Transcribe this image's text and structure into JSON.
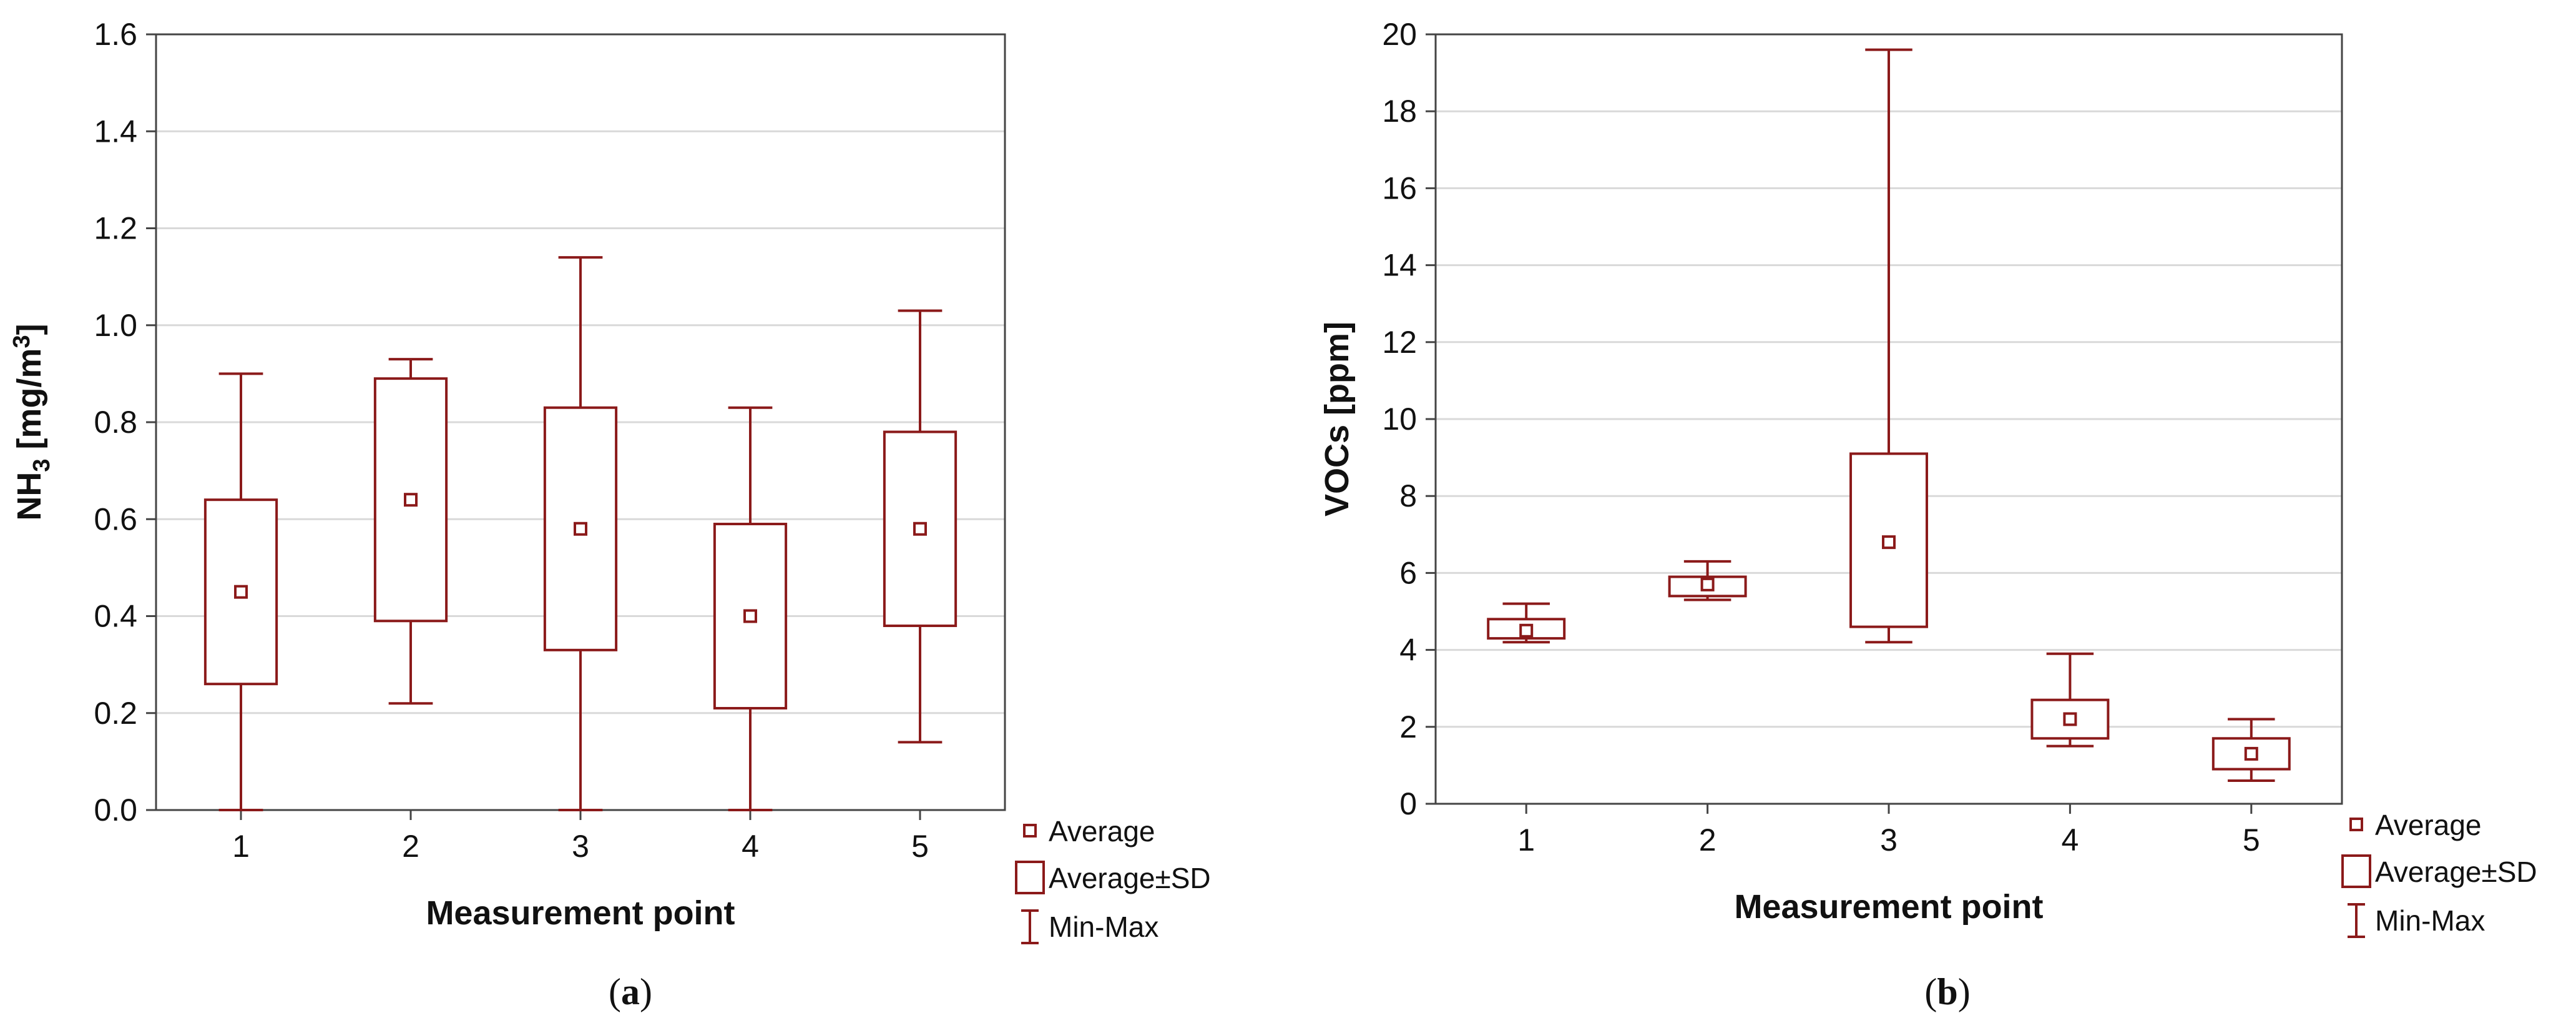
{
  "colors": {
    "mark": "#8b1a1a",
    "grid": "#d9d9d9",
    "axis": "#444444",
    "text": "#111111"
  },
  "legend": {
    "average": "Average",
    "average_sd": "Average±SD",
    "min_max": "Min-Max"
  },
  "chart_data": [
    {
      "type": "box",
      "caption": {
        "open": "(",
        "letter": "a",
        "close": ")"
      },
      "ylabel": {
        "base": "NH",
        "sub": "3",
        "mid": " [mg/m",
        "sup": "3",
        "close": "]"
      },
      "xlabel": "Measurement point",
      "categories": [
        "1",
        "2",
        "3",
        "4",
        "5"
      ],
      "ylim": [
        0,
        1.6
      ],
      "yticks": [
        "0.0",
        "0.2",
        "0.4",
        "0.6",
        "0.8",
        "1.0",
        "1.2",
        "1.4",
        "1.6"
      ],
      "ytick_values": [
        0,
        0.2,
        0.4,
        0.6,
        0.8,
        1.0,
        1.2,
        1.4,
        1.6
      ],
      "series": [
        {
          "name": "Average",
          "values": [
            0.45,
            0.64,
            0.58,
            0.4,
            0.58
          ]
        },
        {
          "name": "Average-SD",
          "values": [
            0.26,
            0.39,
            0.33,
            0.21,
            0.38
          ]
        },
        {
          "name": "Average+SD",
          "values": [
            0.64,
            0.89,
            0.83,
            0.59,
            0.78
          ]
        },
        {
          "name": "Min",
          "values": [
            0.0,
            0.22,
            0.0,
            0.0,
            0.14
          ]
        },
        {
          "name": "Max",
          "values": [
            0.9,
            0.93,
            1.14,
            0.83,
            1.03
          ]
        }
      ]
    },
    {
      "type": "box",
      "caption": {
        "open": "(",
        "letter": "b",
        "close": ")"
      },
      "ylabel": {
        "base": "VOCs [ppm]",
        "sub": "",
        "mid": "",
        "sup": "",
        "close": ""
      },
      "xlabel": "Measurement point",
      "categories": [
        "1",
        "2",
        "3",
        "4",
        "5"
      ],
      "ylim": [
        0,
        20
      ],
      "yticks": [
        "0",
        "2",
        "4",
        "6",
        "8",
        "10",
        "12",
        "14",
        "16",
        "18",
        "20"
      ],
      "ytick_values": [
        0,
        2,
        4,
        6,
        8,
        10,
        12,
        14,
        16,
        18,
        20
      ],
      "series": [
        {
          "name": "Average",
          "values": [
            4.5,
            5.7,
            6.8,
            2.2,
            1.3
          ]
        },
        {
          "name": "Average-SD",
          "values": [
            4.3,
            5.4,
            4.6,
            1.7,
            0.9
          ]
        },
        {
          "name": "Average+SD",
          "values": [
            4.8,
            5.9,
            9.1,
            2.7,
            1.7
          ]
        },
        {
          "name": "Min",
          "values": [
            4.2,
            5.3,
            4.2,
            1.5,
            0.6
          ]
        },
        {
          "name": "Max",
          "values": [
            5.2,
            6.3,
            19.6,
            3.9,
            2.2
          ]
        }
      ]
    }
  ]
}
